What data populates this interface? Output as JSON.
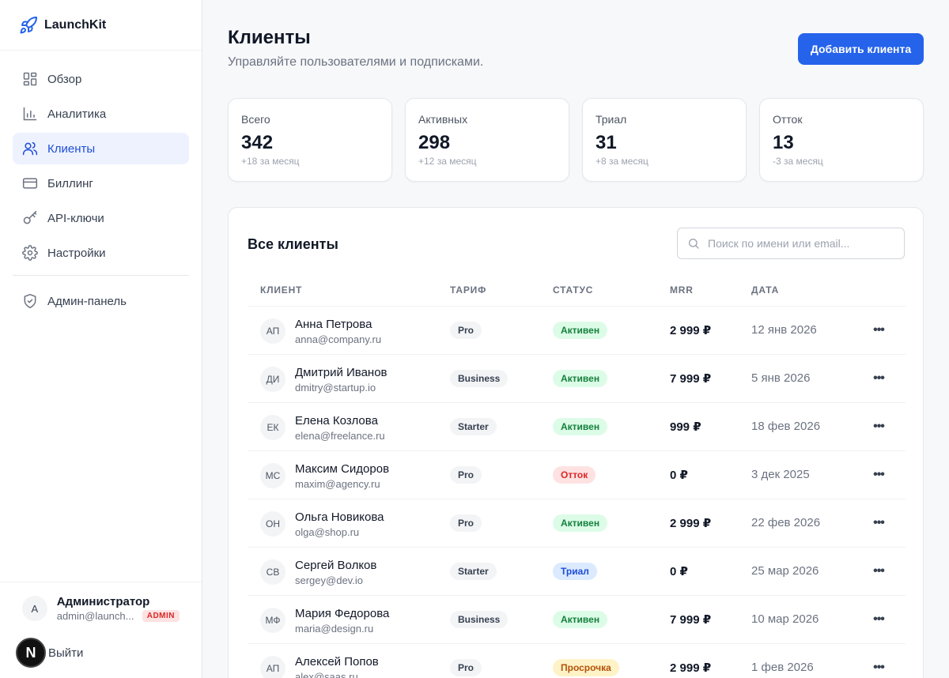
{
  "app": {
    "name": "LaunchKit"
  },
  "sidebar": {
    "items": [
      {
        "label": "Обзор",
        "icon": "grid-icon"
      },
      {
        "label": "Аналитика",
        "icon": "bar-chart-icon"
      },
      {
        "label": "Клиенты",
        "icon": "users-icon",
        "active": true
      },
      {
        "label": "Биллинг",
        "icon": "credit-card-icon"
      },
      {
        "label": "API-ключи",
        "icon": "key-icon"
      },
      {
        "label": "Настройки",
        "icon": "gear-icon"
      }
    ],
    "admin_item": {
      "label": "Админ-панель",
      "icon": "shield-icon"
    },
    "user": {
      "initial": "А",
      "name": "Администратор",
      "email": "admin@launch...",
      "badge": "ADMIN"
    },
    "logout": {
      "label": "Выйти",
      "badge_letter": "N"
    }
  },
  "header": {
    "title": "Клиенты",
    "subtitle": "Управляйте пользователями и подписками.",
    "add_button": "Добавить клиента"
  },
  "stats": [
    {
      "label": "Всего",
      "value": "342",
      "delta": "+18 за месяц"
    },
    {
      "label": "Активных",
      "value": "298",
      "delta": "+12 за месяц"
    },
    {
      "label": "Триал",
      "value": "31",
      "delta": "+8 за месяц"
    },
    {
      "label": "Отток",
      "value": "13",
      "delta": "-3 за месяц"
    }
  ],
  "table": {
    "title": "Все клиенты",
    "search_placeholder": "Поиск по имени или email...",
    "columns": [
      "КЛИЕНТ",
      "ТАРИФ",
      "СТАТУС",
      "MRR",
      "ДАТА"
    ],
    "rows": [
      {
        "initials": "АП",
        "name": "Анна Петрова",
        "email": "anna@company.ru",
        "plan": "Pro",
        "status": "Активен",
        "status_kind": "active",
        "mrr": "2 999 ₽",
        "date": "12 янв 2026"
      },
      {
        "initials": "ДИ",
        "name": "Дмитрий Иванов",
        "email": "dmitry@startup.io",
        "plan": "Business",
        "status": "Активен",
        "status_kind": "active",
        "mrr": "7 999 ₽",
        "date": "5 янв 2026"
      },
      {
        "initials": "ЕК",
        "name": "Елена Козлова",
        "email": "elena@freelance.ru",
        "plan": "Starter",
        "status": "Активен",
        "status_kind": "active",
        "mrr": "999 ₽",
        "date": "18 фев 2026"
      },
      {
        "initials": "МС",
        "name": "Максим Сидоров",
        "email": "maxim@agency.ru",
        "plan": "Pro",
        "status": "Отток",
        "status_kind": "churn",
        "mrr": "0 ₽",
        "date": "3 дек 2025"
      },
      {
        "initials": "ОН",
        "name": "Ольга Новикова",
        "email": "olga@shop.ru",
        "plan": "Pro",
        "status": "Активен",
        "status_kind": "active",
        "mrr": "2 999 ₽",
        "date": "22 фев 2026"
      },
      {
        "initials": "СВ",
        "name": "Сергей Волков",
        "email": "sergey@dev.io",
        "plan": "Starter",
        "status": "Триал",
        "status_kind": "trial",
        "mrr": "0 ₽",
        "date": "25 мар 2026"
      },
      {
        "initials": "МФ",
        "name": "Мария Федорова",
        "email": "maria@design.ru",
        "plan": "Business",
        "status": "Активен",
        "status_kind": "active",
        "mrr": "7 999 ₽",
        "date": "10 мар 2026"
      },
      {
        "initials": "АП",
        "name": "Алексей Попов",
        "email": "alex@saas.ru",
        "plan": "Pro",
        "status": "Просрочка",
        "status_kind": "overdue",
        "mrr": "2 999 ₽",
        "date": "1 фев 2026"
      }
    ]
  },
  "colors": {
    "accent": "#2563eb",
    "active": "#15803d",
    "churn": "#dc2626",
    "trial": "#1d4ed8",
    "overdue": "#b45309"
  }
}
